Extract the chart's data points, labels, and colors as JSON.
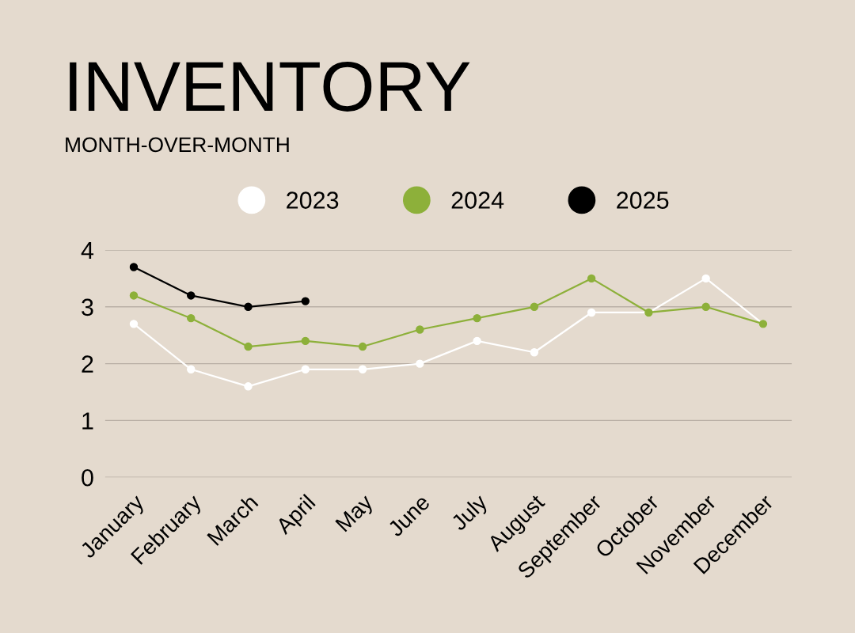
{
  "chart_data": {
    "type": "line",
    "title": "INVENTORY",
    "subtitle": "MONTH-OVER-MONTH",
    "categories": [
      "January",
      "February",
      "March",
      "April",
      "May",
      "June",
      "July",
      "August",
      "September",
      "October",
      "November",
      "December"
    ],
    "series": [
      {
        "name": "2023",
        "color": "#ffffff",
        "values": [
          2.7,
          1.9,
          1.6,
          1.9,
          1.9,
          2.0,
          2.4,
          2.2,
          2.9,
          2.9,
          3.5,
          2.7
        ]
      },
      {
        "name": "2024",
        "color": "#8db03a",
        "values": [
          3.2,
          2.8,
          2.3,
          2.4,
          2.3,
          2.6,
          2.8,
          3.0,
          3.5,
          2.9,
          3.0,
          2.7
        ]
      },
      {
        "name": "2025",
        "color": "#000000",
        "values": [
          3.7,
          3.2,
          3.0,
          3.1,
          null,
          null,
          null,
          null,
          null,
          null,
          null,
          null
        ]
      }
    ],
    "ylim": [
      0,
      4
    ],
    "yticks": [
      0,
      1,
      2,
      3,
      4
    ],
    "grid": "y",
    "legend": "top",
    "marker": "circle",
    "line_style": "solid"
  }
}
